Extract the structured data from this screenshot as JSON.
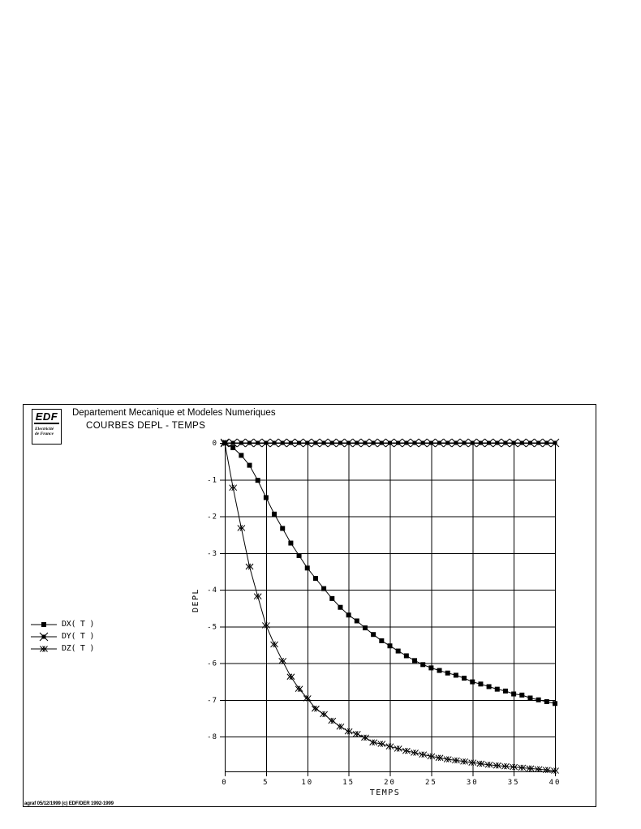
{
  "colors": {
    "ink": "#000000",
    "background": "#ffffff"
  },
  "logo": {
    "name": "EDF",
    "sub1": "Electricité",
    "sub2": "de France"
  },
  "header": {
    "department": "Departement Mecanique et Modeles Numeriques",
    "title": "COURBES DEPL - TEMPS"
  },
  "legend": {
    "items": [
      {
        "label": "DX( T )",
        "marker": "square"
      },
      {
        "label": "DY( T )",
        "marker": "square-star"
      },
      {
        "label": "DZ( T )",
        "marker": "double-x"
      }
    ]
  },
  "footer": {
    "credit": "agraf 05/12/1999 (c) EDF/DER 1992-1999"
  },
  "chart_data": {
    "type": "line",
    "title": "COURBES DEPL - TEMPS",
    "xlabel": "TEMPS",
    "ylabel": "DEPL",
    "xlim": [
      0,
      40
    ],
    "ylim": [
      -8.95,
      0
    ],
    "x_ticks": [
      0,
      5,
      10,
      15,
      20,
      25,
      30,
      35,
      40
    ],
    "y_ticks": [
      0,
      -1,
      -2,
      -3,
      -4,
      -5,
      -6,
      -7,
      -8
    ],
    "grid": true,
    "legend_position": "left",
    "x": [
      0,
      1,
      2,
      3,
      4,
      5,
      6,
      7,
      8,
      9,
      10,
      11,
      12,
      13,
      14,
      15,
      16,
      17,
      18,
      19,
      20,
      21,
      22,
      23,
      24,
      25,
      26,
      27,
      28,
      29,
      30,
      31,
      32,
      33,
      34,
      35,
      36,
      37,
      38,
      39,
      40
    ],
    "series": [
      {
        "name": "DX( T )",
        "marker": "square",
        "color": "#000000",
        "values": [
          0,
          -0.13,
          -0.34,
          -0.61,
          -1.02,
          -1.49,
          -1.94,
          -2.33,
          -2.73,
          -3.07,
          -3.41,
          -3.69,
          -3.97,
          -4.24,
          -4.48,
          -4.69,
          -4.85,
          -5.04,
          -5.22,
          -5.39,
          -5.53,
          -5.67,
          -5.8,
          -5.93,
          -6.04,
          -6.13,
          -6.2,
          -6.27,
          -6.33,
          -6.41,
          -6.51,
          -6.57,
          -6.64,
          -6.71,
          -6.76,
          -6.84,
          -6.87,
          -6.95,
          -7.0,
          -7.05,
          -7.1
        ]
      },
      {
        "name": "DY( T )",
        "marker": "square-star",
        "color": "#000000",
        "values": [
          0,
          0,
          0,
          0,
          0,
          0,
          0,
          0,
          0,
          0,
          0,
          0,
          0,
          0,
          0,
          0,
          0,
          0,
          0,
          0,
          0,
          0,
          0,
          0,
          0,
          0,
          0,
          0,
          0,
          0,
          0,
          0,
          0,
          0,
          0,
          0,
          0,
          0,
          0,
          0,
          0
        ]
      },
      {
        "name": "DZ( T )",
        "marker": "double-x",
        "color": "#000000",
        "values": [
          0,
          -1.22,
          -2.32,
          -3.37,
          -4.18,
          -4.97,
          -5.49,
          -5.94,
          -6.37,
          -6.7,
          -6.96,
          -7.24,
          -7.39,
          -7.57,
          -7.73,
          -7.86,
          -7.93,
          -8.03,
          -8.16,
          -8.2,
          -8.27,
          -8.33,
          -8.39,
          -8.44,
          -8.49,
          -8.54,
          -8.58,
          -8.62,
          -8.65,
          -8.68,
          -8.71,
          -8.74,
          -8.77,
          -8.79,
          -8.81,
          -8.83,
          -8.85,
          -8.87,
          -8.89,
          -8.91,
          -8.93
        ]
      }
    ]
  }
}
